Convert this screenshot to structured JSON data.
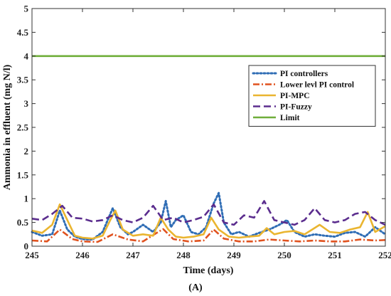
{
  "panel_label": "(A)",
  "chart_data": {
    "type": "line",
    "title": "",
    "xlabel": "Time (days)",
    "ylabel": "Ammonia in effluent (mg N/l)",
    "xlim": [
      245,
      252
    ],
    "ylim": [
      0,
      5
    ],
    "x_ticks": [
      "245",
      "246",
      "247",
      "248",
      "249",
      "250",
      "251",
      "252"
    ],
    "y_ticks": [
      "0",
      "0.5",
      "1",
      "1.5",
      "2",
      "2.5",
      "3",
      "3.5",
      "4",
      "4.5",
      "5"
    ],
    "grid": false,
    "legend_position": "right",
    "series": [
      {
        "name": "PI controllers",
        "color": "#2f6db5",
        "style": "dotted",
        "x": [
          245.0,
          245.2,
          245.4,
          245.55,
          245.7,
          245.85,
          246.0,
          246.2,
          246.4,
          246.6,
          246.75,
          246.9,
          247.0,
          247.2,
          247.4,
          247.55,
          247.65,
          247.75,
          247.85,
          248.0,
          248.15,
          248.3,
          248.45,
          248.6,
          248.7,
          248.8,
          248.95,
          249.1,
          249.3,
          249.5,
          249.7,
          249.9,
          250.05,
          250.2,
          250.4,
          250.6,
          250.8,
          251.0,
          251.2,
          251.4,
          251.6,
          251.8,
          252.0
        ],
        "y": [
          0.3,
          0.22,
          0.25,
          0.75,
          0.35,
          0.2,
          0.15,
          0.14,
          0.3,
          0.8,
          0.4,
          0.25,
          0.3,
          0.45,
          0.3,
          0.5,
          0.95,
          0.4,
          0.55,
          0.65,
          0.3,
          0.25,
          0.4,
          0.9,
          1.12,
          0.5,
          0.25,
          0.3,
          0.2,
          0.28,
          0.35,
          0.45,
          0.55,
          0.3,
          0.2,
          0.25,
          0.22,
          0.2,
          0.28,
          0.3,
          0.2,
          0.4,
          0.25
        ]
      },
      {
        "name": "Lower levl PI control",
        "color": "#e0521f",
        "style": "dashdot",
        "x": [
          245.0,
          245.3,
          245.55,
          245.8,
          246.0,
          246.3,
          246.6,
          246.9,
          247.2,
          247.5,
          247.6,
          247.8,
          248.1,
          248.4,
          248.6,
          248.8,
          249.1,
          249.4,
          249.7,
          250.0,
          250.3,
          250.6,
          250.9,
          251.2,
          251.5,
          251.8,
          252.0
        ],
        "y": [
          0.12,
          0.1,
          0.35,
          0.15,
          0.1,
          0.09,
          0.25,
          0.14,
          0.1,
          0.3,
          0.36,
          0.15,
          0.1,
          0.12,
          0.35,
          0.16,
          0.1,
          0.1,
          0.14,
          0.12,
          0.1,
          0.12,
          0.1,
          0.1,
          0.14,
          0.12,
          0.13
        ]
      },
      {
        "name": "PI-MPC",
        "color": "#eab530",
        "style": "solid",
        "x": [
          245.0,
          245.2,
          245.4,
          245.55,
          245.7,
          245.85,
          246.0,
          246.2,
          246.4,
          246.55,
          246.65,
          246.8,
          247.0,
          247.2,
          247.4,
          247.55,
          247.7,
          247.85,
          248.0,
          248.2,
          248.4,
          248.55,
          248.7,
          248.9,
          249.1,
          249.3,
          249.5,
          249.65,
          249.8,
          250.0,
          250.2,
          250.4,
          250.55,
          250.7,
          250.9,
          251.1,
          251.3,
          251.5,
          251.65,
          251.8,
          252.0
        ],
        "y": [
          0.33,
          0.28,
          0.45,
          0.88,
          0.55,
          0.22,
          0.18,
          0.16,
          0.22,
          0.55,
          0.75,
          0.35,
          0.22,
          0.25,
          0.22,
          0.6,
          0.35,
          0.2,
          0.18,
          0.2,
          0.25,
          0.6,
          0.35,
          0.2,
          0.18,
          0.2,
          0.22,
          0.38,
          0.25,
          0.3,
          0.32,
          0.25,
          0.35,
          0.45,
          0.3,
          0.28,
          0.35,
          0.4,
          0.72,
          0.3,
          0.42
        ]
      },
      {
        "name": "PI-Fuzzy",
        "color": "#5b2d8e",
        "style": "dashed",
        "x": [
          245.0,
          245.2,
          245.4,
          245.6,
          245.8,
          246.0,
          246.2,
          246.4,
          246.6,
          246.8,
          247.0,
          247.2,
          247.4,
          247.6,
          247.8,
          248.0,
          248.2,
          248.4,
          248.6,
          248.8,
          249.0,
          249.2,
          249.4,
          249.6,
          249.8,
          250.0,
          250.2,
          250.4,
          250.6,
          250.8,
          251.0,
          251.2,
          251.4,
          251.6,
          251.8,
          252.0
        ],
        "y": [
          0.58,
          0.55,
          0.68,
          0.85,
          0.6,
          0.58,
          0.52,
          0.55,
          0.65,
          0.55,
          0.5,
          0.6,
          0.85,
          0.55,
          0.6,
          0.5,
          0.55,
          0.62,
          0.88,
          0.5,
          0.45,
          0.65,
          0.6,
          0.95,
          0.55,
          0.5,
          0.45,
          0.55,
          0.8,
          0.55,
          0.5,
          0.55,
          0.68,
          0.72,
          0.55,
          0.45
        ]
      },
      {
        "name": "Limit",
        "color": "#6fae3a",
        "style": "solid",
        "x": [
          245,
          252
        ],
        "y": [
          4,
          4
        ]
      }
    ]
  }
}
